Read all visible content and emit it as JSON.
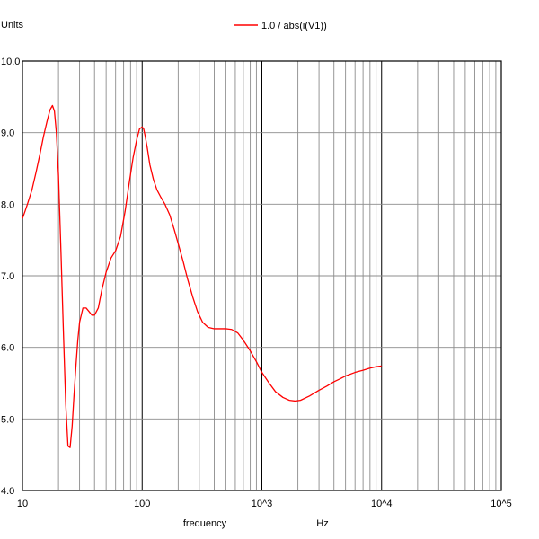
{
  "chart_data": {
    "type": "line",
    "ylabel": "Units",
    "xlabel": "frequency",
    "xunit": "Hz",
    "xscale": "log",
    "xlim": [
      10,
      100000
    ],
    "ylim": [
      4.0,
      10.0
    ],
    "grid": true,
    "legend_position": "top-center",
    "x_tick_labels": [
      "10",
      "100",
      "10^3",
      "10^4",
      "10^5"
    ],
    "y_tick_labels": [
      "4.0",
      "5.0",
      "6.0",
      "7.0",
      "8.0",
      "9.0",
      "10.0"
    ],
    "series": [
      {
        "name": "1.0 / abs(i(V1))",
        "color": "#ff0000",
        "x": [
          10,
          10.5,
          11,
          12,
          13,
          14,
          15,
          16,
          17,
          17.8,
          18.5,
          19.2,
          20,
          21,
          22,
          23,
          24,
          25,
          26,
          27,
          28,
          29,
          30,
          32,
          34,
          36,
          38,
          40,
          43,
          46,
          50,
          55,
          60,
          66,
          72,
          78,
          84,
          90,
          95,
          100,
          103,
          106,
          110,
          116,
          124,
          133,
          143,
          155,
          170,
          185,
          200,
          220,
          240,
          265,
          290,
          320,
          355,
          400,
          450,
          500,
          560,
          630,
          700,
          800,
          900,
          1000,
          1150,
          1300,
          1500,
          1700,
          1900,
          2100,
          2500,
          3000,
          3500,
          4000,
          4500,
          5000,
          6000,
          7000,
          8000,
          9000,
          10000
        ],
        "y": [
          7.8,
          7.9,
          8.0,
          8.2,
          8.45,
          8.7,
          8.95,
          9.15,
          9.32,
          9.38,
          9.3,
          9.0,
          8.4,
          7.3,
          6.2,
          5.2,
          4.62,
          4.6,
          4.9,
          5.35,
          5.75,
          6.1,
          6.35,
          6.55,
          6.55,
          6.5,
          6.45,
          6.45,
          6.55,
          6.8,
          7.05,
          7.25,
          7.35,
          7.55,
          7.9,
          8.3,
          8.65,
          8.9,
          9.05,
          9.08,
          9.05,
          8.95,
          8.8,
          8.55,
          8.35,
          8.2,
          8.1,
          8.0,
          7.85,
          7.65,
          7.45,
          7.2,
          6.95,
          6.7,
          6.5,
          6.35,
          6.28,
          6.26,
          6.26,
          6.26,
          6.25,
          6.2,
          6.1,
          5.95,
          5.8,
          5.65,
          5.5,
          5.38,
          5.3,
          5.26,
          5.25,
          5.26,
          5.32,
          5.4,
          5.46,
          5.52,
          5.56,
          5.6,
          5.65,
          5.68,
          5.71,
          5.73,
          5.74
        ]
      }
    ]
  }
}
